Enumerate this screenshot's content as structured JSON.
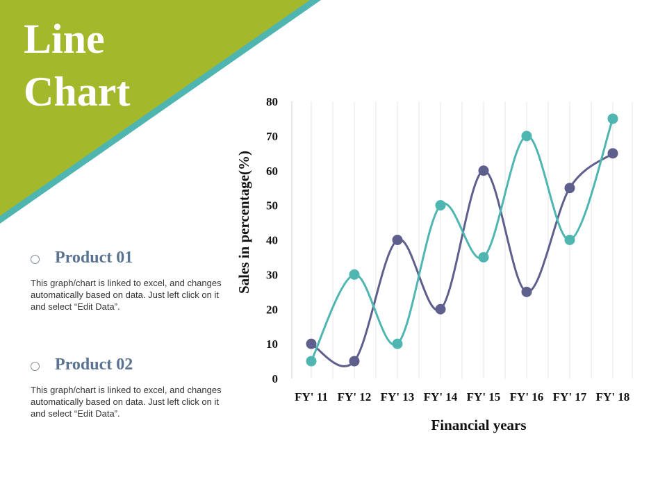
{
  "title": {
    "line1": "Line",
    "line2": "Chart"
  },
  "products": [
    {
      "name": "Product 01",
      "description": "This graph/chart is linked to excel, and changes automatically based on data. Just left click on it and select “Edit Data”."
    },
    {
      "name": "Product 02",
      "description": "This graph/chart is linked to excel, and changes automatically based on data. Just left click on it and select “Edit Data”."
    }
  ],
  "colors": {
    "banner_green": "#a4b82c",
    "banner_teal": "#4fb5b0",
    "series_1": "#5e5f8c",
    "series_2": "#4fb5b0"
  },
  "chart_data": {
    "type": "line",
    "categories": [
      "FY' 11",
      "FY' 12",
      "FY' 13",
      "FY' 14",
      "FY' 15",
      "FY' 16",
      "FY' 17",
      "FY' 18"
    ],
    "series": [
      {
        "values": [
          10,
          5,
          40,
          20,
          60,
          25,
          55,
          65
        ],
        "color": "#5e5f8c"
      },
      {
        "values": [
          5,
          30,
          10,
          50,
          35,
          70,
          40,
          75
        ],
        "color": "#4fb5b0"
      }
    ],
    "ylim": [
      0,
      80
    ],
    "yticks": [
      0,
      10,
      20,
      30,
      40,
      50,
      60,
      70,
      80
    ],
    "xlabel": "Financial years",
    "ylabel": "Sales in percentage(%)",
    "grid": "vertical",
    "smooth": true
  }
}
